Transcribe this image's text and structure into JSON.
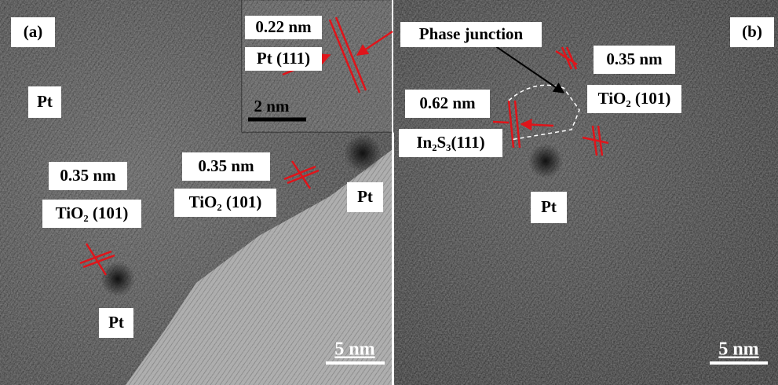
{
  "panels": [
    {
      "label": "(a)",
      "annotations": [
        "Pt",
        "0.35 nm",
        "TiO₂ (101)",
        "0.35 nm",
        "TiO₂ (101)",
        "Pt",
        "Pt"
      ],
      "scale_bar": "5 nm",
      "inset": {
        "annotations": [
          "0.22 nm",
          "Pt (111)"
        ],
        "scale_bar": "2 nm"
      }
    },
    {
      "label": "(b)",
      "annotations": [
        "Phase junction",
        "0.35 nm",
        "TiO₂ (101)",
        "0.62 nm",
        "In₂S₃(111)",
        "Pt"
      ],
      "scale_bar": "5 nm"
    }
  ]
}
